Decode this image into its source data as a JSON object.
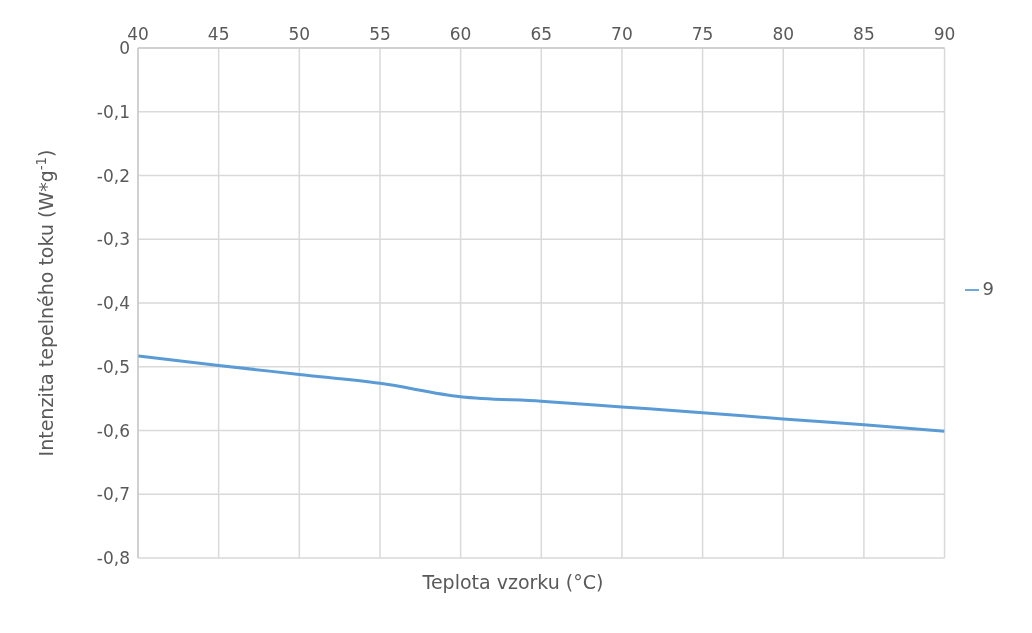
{
  "chart_data": {
    "type": "line",
    "xlabel": "Teplota vzorku (°C)",
    "ylabel": "Intenzita tepelného toku (W*g$^{-1}$)",
    "x": [
      40,
      45,
      50,
      55,
      60,
      65,
      70,
      75,
      80,
      85,
      90
    ],
    "series": [
      {
        "name": "9",
        "color": "#5b9bd5",
        "values": [
          -0.483,
          -0.498,
          -0.512,
          -0.526,
          -0.547,
          -0.554,
          -0.563,
          -0.572,
          -0.582,
          -0.591,
          -0.601
        ]
      }
    ],
    "xlim": [
      40,
      90
    ],
    "xticks": [
      40,
      45,
      50,
      55,
      60,
      65,
      70,
      75,
      80,
      85,
      90
    ],
    "ylim": [
      -0.8,
      0
    ],
    "yticks": [
      0,
      {
        "value": -0.1,
        "label": "-0,1"
      },
      {
        "value": -0.2,
        "label": "-0,2"
      },
      {
        "value": -0.3,
        "label": "-0,3"
      },
      {
        "value": -0.4,
        "label": "-0,4"
      },
      {
        "value": -0.5,
        "label": "-0,5"
      },
      {
        "value": -0.6,
        "label": "-0,6"
      },
      {
        "value": -0.7,
        "label": "-0,7"
      },
      {
        "value": -0.8,
        "label": "-0,8"
      }
    ],
    "grid": true,
    "legend": "right"
  }
}
